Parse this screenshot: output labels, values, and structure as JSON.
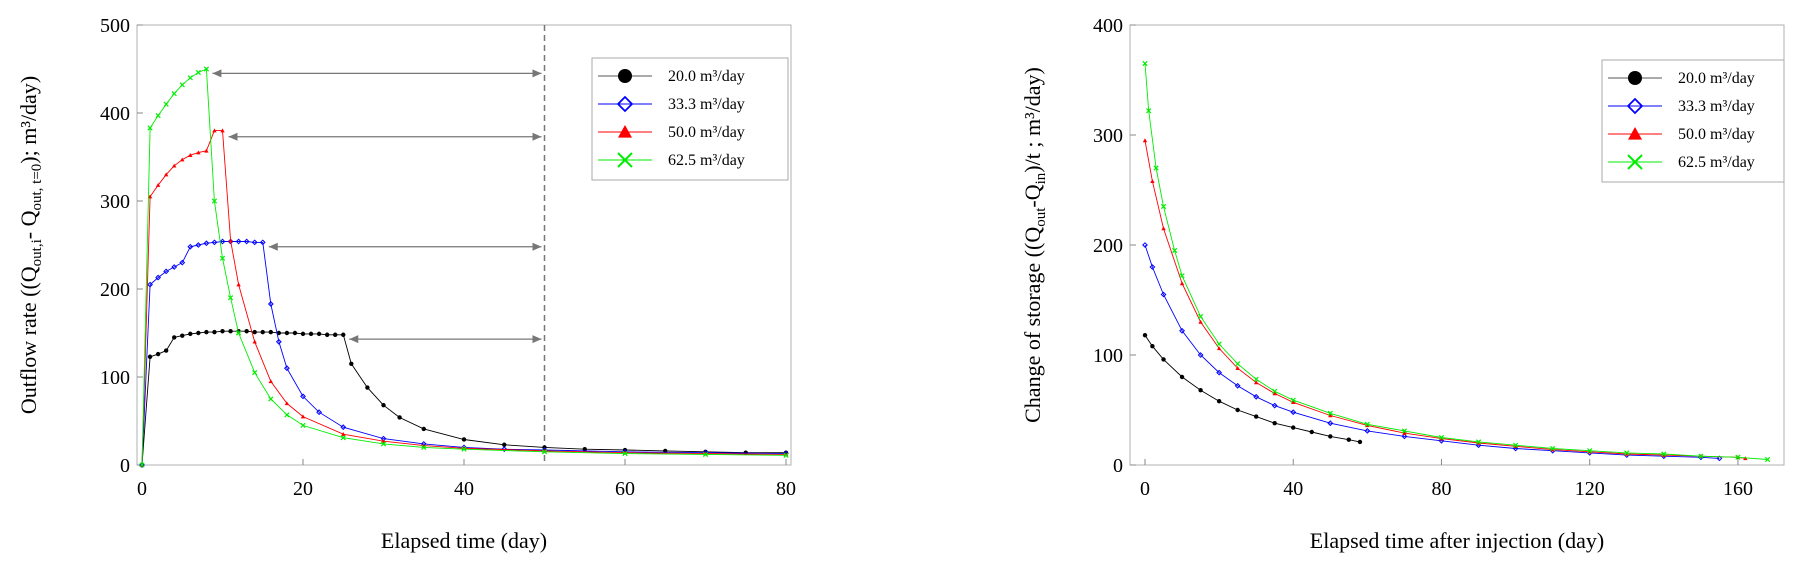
{
  "chart_data": [
    {
      "type": "line",
      "xlabel": "Elapsed time (day)",
      "ylabel_parts": [
        "Outflow rate ((Q",
        "out,i",
        "- Q",
        "out, t=0",
        "); m³/day)"
      ],
      "xlim": [
        0,
        80
      ],
      "ylim": [
        0,
        500
      ],
      "xticks": [
        0,
        20,
        40,
        60,
        80
      ],
      "yticks": [
        0,
        100,
        200,
        300,
        400,
        500
      ],
      "grid": false,
      "legend_position": "top-right",
      "reference_line_x": 50,
      "series": [
        {
          "name": "20.0 m³/day",
          "color": "#000000",
          "marker": "circle",
          "injection_end": 25,
          "arrow_y": 143,
          "x": [
            0,
            1,
            2,
            3,
            4,
            5,
            6,
            7,
            8,
            9,
            10,
            11,
            12,
            13,
            14,
            15,
            16,
            17,
            18,
            19,
            20,
            21,
            22,
            23,
            24,
            25,
            26,
            28,
            30,
            32,
            35,
            40,
            45,
            50,
            55,
            60,
            65,
            70,
            75,
            80
          ],
          "values": [
            0,
            123,
            126,
            130,
            145,
            147,
            149,
            150,
            151,
            151,
            152,
            152,
            152,
            152,
            151,
            151,
            151,
            150,
            150,
            150,
            149,
            149,
            149,
            148,
            148,
            148,
            115,
            88,
            68,
            54,
            41,
            29,
            23,
            20,
            18,
            17,
            16,
            15,
            14,
            14
          ]
        },
        {
          "name": "33.3 m³/day",
          "color": "#0000ff",
          "marker": "diamond",
          "injection_end": 15,
          "arrow_y": 248,
          "x": [
            0,
            1,
            2,
            3,
            4,
            5,
            6,
            7,
            8,
            9,
            10,
            11,
            12,
            13,
            14,
            15,
            16,
            17,
            18,
            20,
            22,
            25,
            30,
            35,
            40,
            45,
            50,
            60,
            70,
            80
          ],
          "values": [
            0,
            205,
            213,
            220,
            225,
            230,
            248,
            250,
            252,
            253,
            254,
            254,
            254,
            254,
            253,
            253,
            183,
            140,
            110,
            78,
            60,
            43,
            30,
            24,
            20,
            18,
            17,
            15,
            14,
            13
          ]
        },
        {
          "name": "50.0 m³/day",
          "color": "#ff0000",
          "marker": "triangle",
          "injection_end": 10,
          "arrow_y": 373,
          "x": [
            0,
            1,
            2,
            3,
            4,
            5,
            6,
            7,
            8,
            9,
            10,
            11,
            12,
            14,
            16,
            18,
            20,
            25,
            30,
            35,
            40,
            50,
            60,
            70,
            80
          ],
          "values": [
            0,
            305,
            318,
            330,
            340,
            347,
            352,
            355,
            357,
            380,
            380,
            255,
            205,
            140,
            95,
            70,
            55,
            35,
            27,
            22,
            19,
            16,
            14,
            13,
            12
          ]
        },
        {
          "name": "62.5 m³/day",
          "color": "#00ee00",
          "marker": "x",
          "injection_end": 8,
          "arrow_y": 445,
          "x": [
            0,
            1,
            2,
            3,
            4,
            5,
            6,
            7,
            8,
            9,
            10,
            11,
            12,
            14,
            16,
            18,
            20,
            25,
            30,
            35,
            40,
            50,
            60,
            70,
            80
          ],
          "values": [
            0,
            383,
            397,
            410,
            422,
            432,
            440,
            446,
            450,
            300,
            235,
            190,
            150,
            105,
            75,
            57,
            45,
            31,
            24,
            20,
            18,
            15,
            13,
            12,
            11
          ]
        }
      ]
    },
    {
      "type": "line",
      "xlabel": "Elapsed time after injection (day)",
      "ylabel_parts": [
        "Change of storage ((Q",
        "out",
        "-Q",
        "in",
        ")/t ; m³/day)"
      ],
      "xlim": [
        0,
        170
      ],
      "ylim": [
        0,
        400
      ],
      "xticks": [
        0,
        40,
        80,
        120,
        160
      ],
      "yticks": [
        0,
        100,
        200,
        300,
        400
      ],
      "grid": false,
      "legend_position": "top-right",
      "series": [
        {
          "name": "20.0 m³/day",
          "color": "#000000",
          "marker": "circle",
          "x": [
            0,
            2,
            5,
            10,
            15,
            20,
            25,
            30,
            35,
            40,
            45,
            50,
            55,
            58
          ],
          "values": [
            118,
            108,
            96,
            80,
            68,
            58,
            50,
            44,
            38,
            34,
            30,
            26,
            23,
            21
          ]
        },
        {
          "name": "33.3 m³/day",
          "color": "#0000ff",
          "marker": "diamond",
          "x": [
            0,
            2,
            5,
            10,
            15,
            20,
            25,
            30,
            35,
            40,
            50,
            60,
            70,
            80,
            90,
            100,
            110,
            120,
            130,
            140,
            150,
            155
          ],
          "values": [
            200,
            180,
            155,
            122,
            100,
            84,
            72,
            62,
            54,
            48,
            38,
            31,
            26,
            22,
            18,
            15,
            13,
            11,
            9,
            8,
            7,
            6
          ]
        },
        {
          "name": "50.0 m³/day",
          "color": "#ff0000",
          "marker": "triangle",
          "x": [
            0,
            2,
            5,
            10,
            15,
            20,
            25,
            30,
            35,
            40,
            50,
            60,
            70,
            80,
            90,
            100,
            110,
            120,
            130,
            140,
            150,
            160,
            162
          ],
          "values": [
            295,
            258,
            215,
            165,
            130,
            106,
            88,
            75,
            65,
            57,
            45,
            36,
            29,
            24,
            20,
            17,
            14,
            12,
            10,
            9,
            8,
            7,
            6
          ]
        },
        {
          "name": "62.5 m³/day",
          "color": "#00ee00",
          "marker": "x",
          "x": [
            0,
            1,
            3,
            5,
            8,
            10,
            15,
            20,
            25,
            30,
            35,
            40,
            50,
            60,
            70,
            80,
            90,
            100,
            110,
            120,
            130,
            140,
            150,
            160,
            168
          ],
          "values": [
            365,
            322,
            270,
            235,
            195,
            172,
            135,
            110,
            92,
            78,
            67,
            59,
            47,
            37,
            31,
            25,
            21,
            18,
            15,
            13,
            11,
            10,
            8,
            7,
            5
          ]
        }
      ]
    }
  ]
}
